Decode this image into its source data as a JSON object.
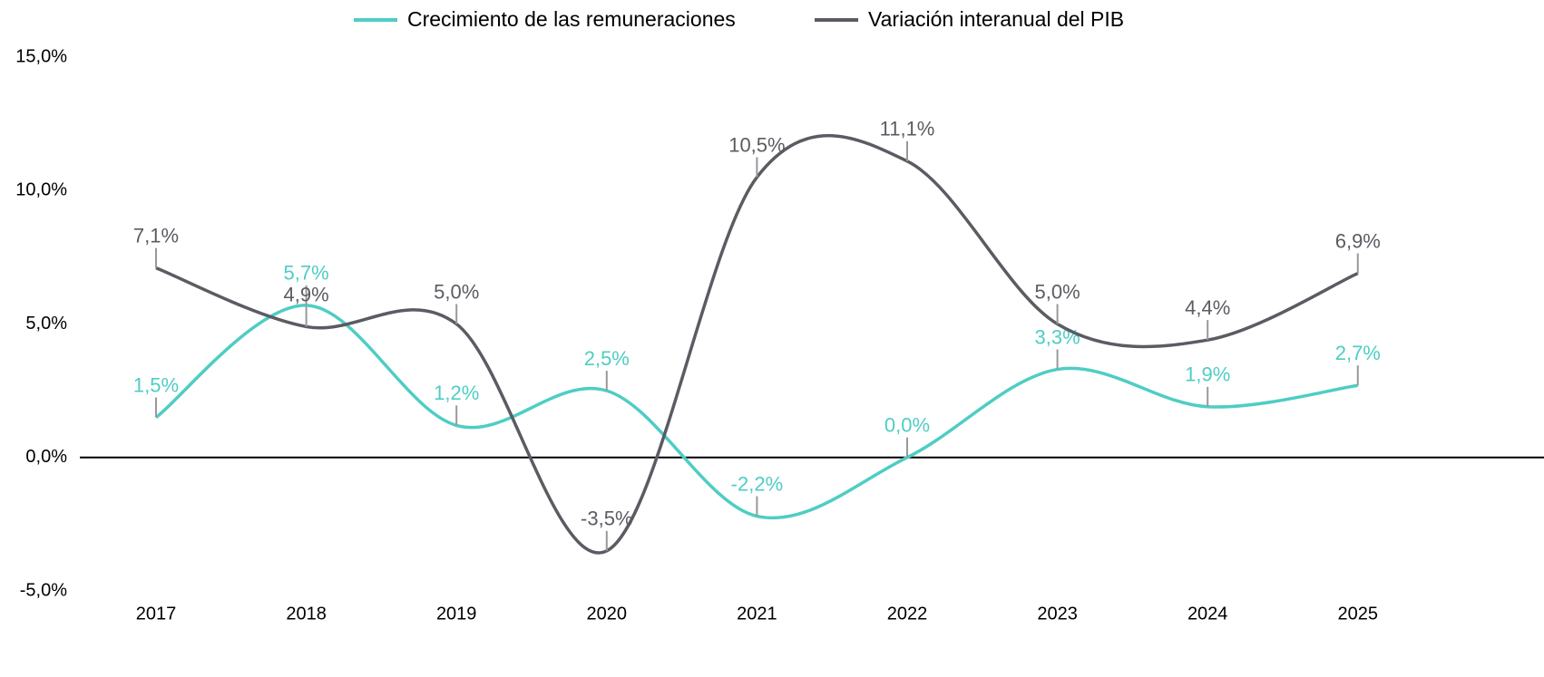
{
  "chart_data": {
    "type": "line",
    "categories": [
      "2017",
      "2018",
      "2019",
      "2020",
      "2021",
      "2022",
      "2023",
      "2024",
      "2025"
    ],
    "series": [
      {
        "name": "Crecimiento de las remuneraciones",
        "color": "#4ecdc4",
        "values": [
          1.5,
          5.7,
          1.2,
          2.5,
          -2.2,
          0.0,
          3.3,
          1.9,
          2.7
        ],
        "value_labels": [
          "1,5%",
          "5,7%",
          "1,2%",
          "2,5%",
          "-2,2%",
          "0,0%",
          "3,3%",
          "1,9%",
          "2,7%"
        ]
      },
      {
        "name": "Variación interanual del PIB",
        "color": "#5b5b63",
        "values": [
          7.1,
          4.9,
          5.0,
          -3.5,
          10.5,
          11.1,
          5.0,
          4.4,
          6.9
        ],
        "value_labels": [
          "7,1%",
          "4,9%",
          "5,0%",
          "-3,5%",
          "10,5%",
          "11,1%",
          "5,0%",
          "4,4%",
          "6,9%"
        ]
      }
    ],
    "ylim": [
      -5,
      15
    ],
    "yticks": [
      {
        "value": -5,
        "label": "-5,0%"
      },
      {
        "value": 0,
        "label": "0,0%"
      },
      {
        "value": 5,
        "label": "5,0%"
      },
      {
        "value": 10,
        "label": "10,0%"
      },
      {
        "value": 15,
        "label": "15,0%"
      }
    ],
    "legend": "top"
  }
}
